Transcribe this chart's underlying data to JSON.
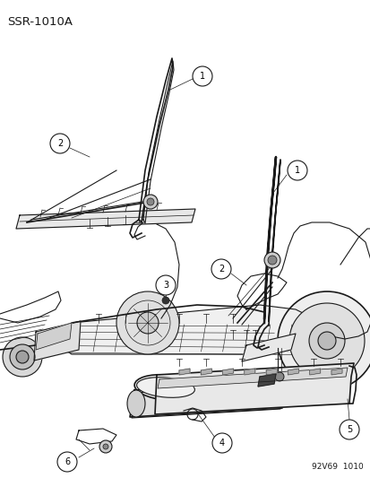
{
  "title_text": "SSR-1010A",
  "footer_text": "92V69  1010",
  "bg_color": "#ffffff",
  "line_color": "#1a1a1a",
  "title_fontsize": 9.5,
  "footer_fontsize": 6.5,
  "fig_width": 4.14,
  "fig_height": 5.33,
  "dpi": 100
}
